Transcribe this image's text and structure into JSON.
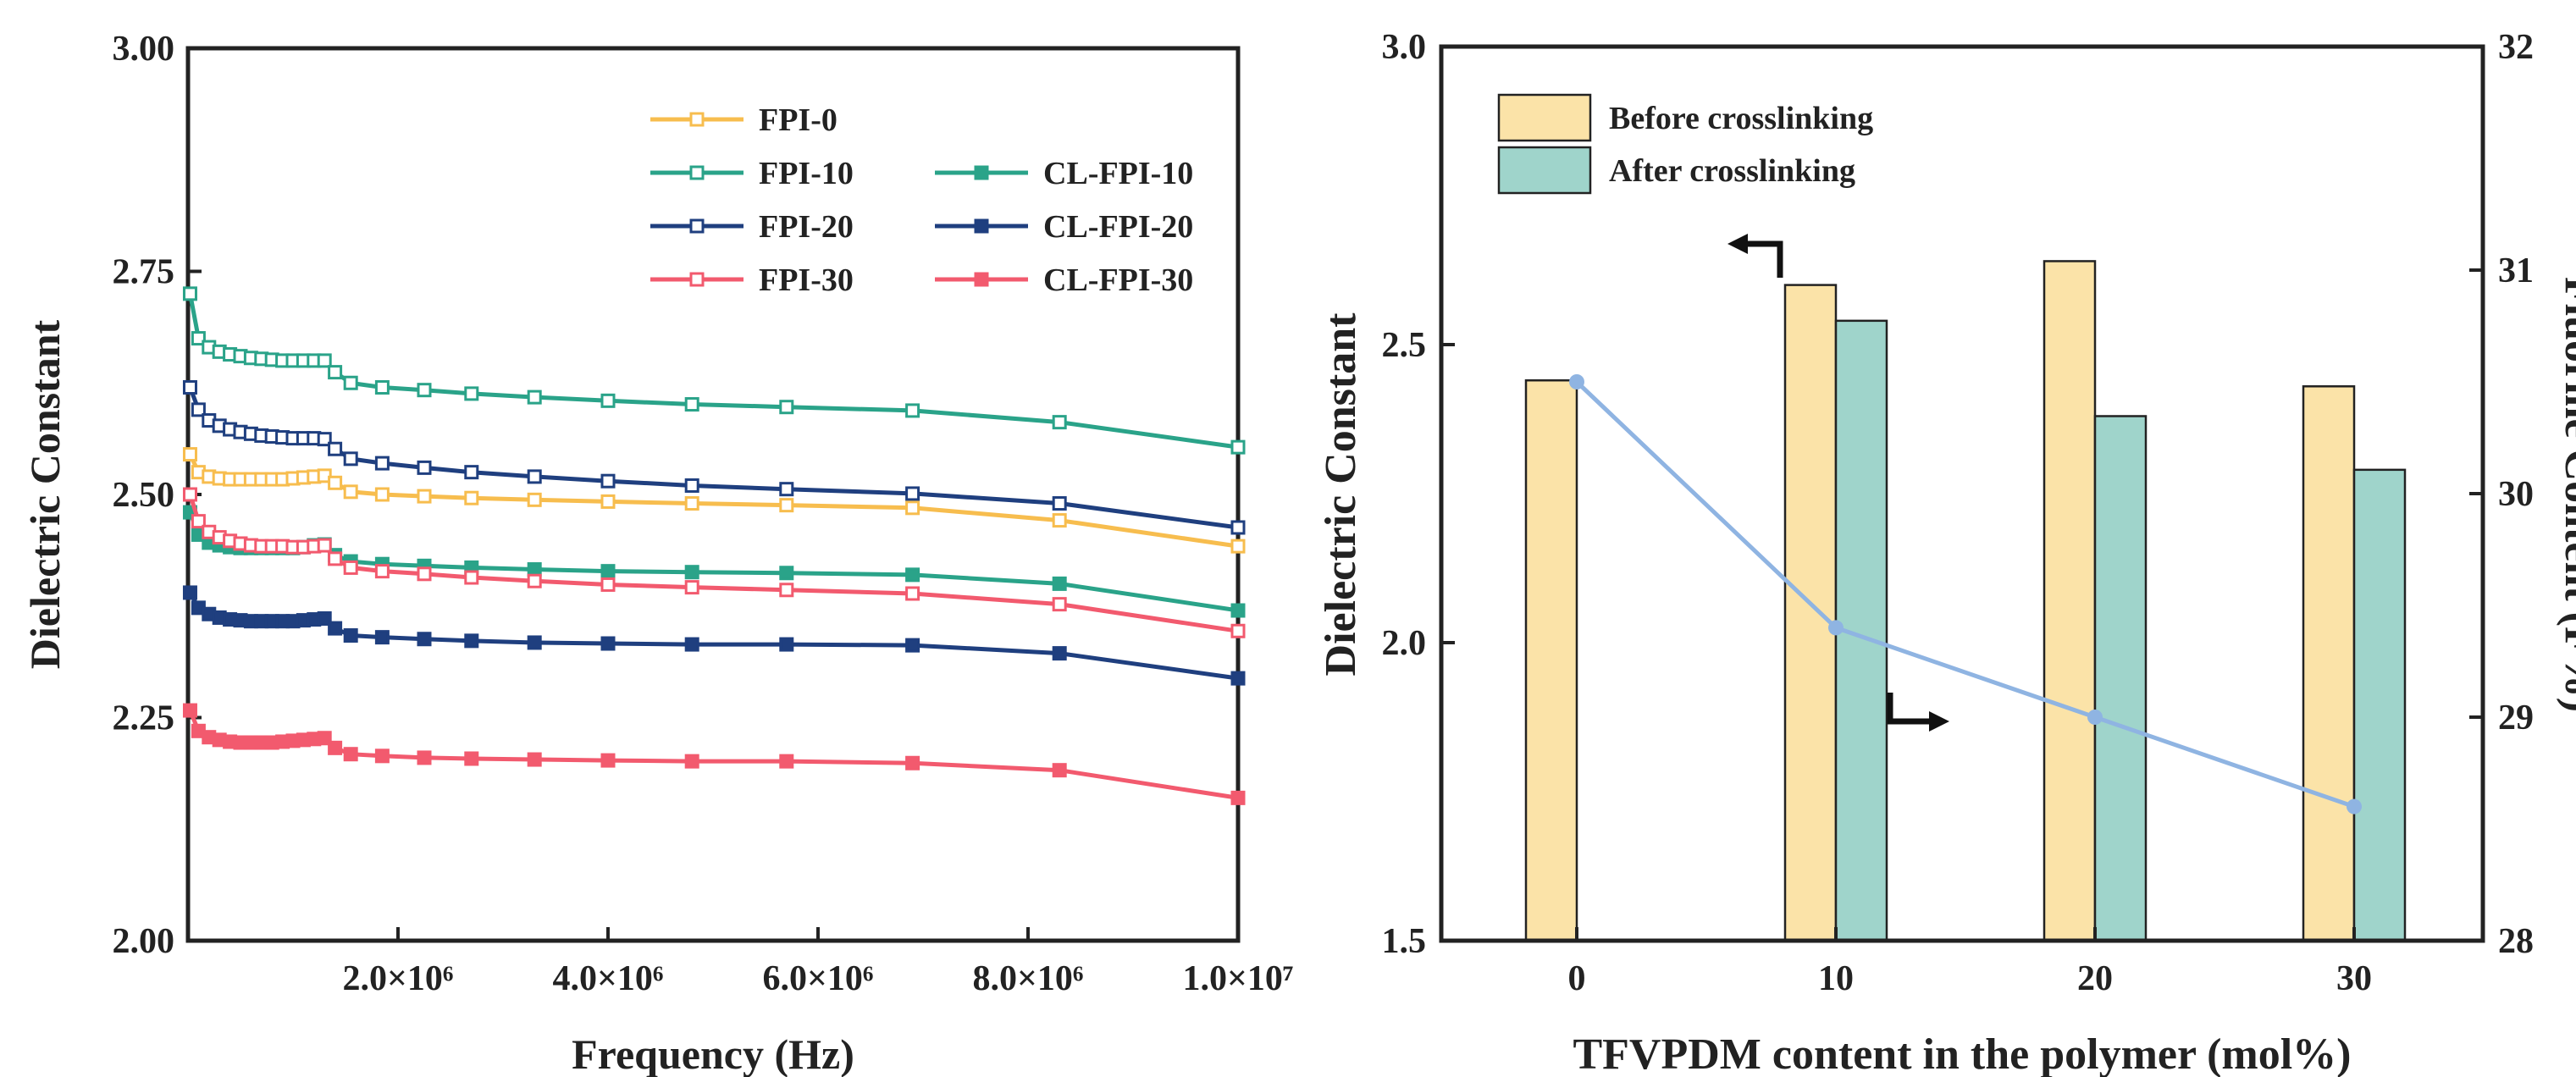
{
  "chart_data": [
    {
      "type": "line",
      "title": "",
      "xlabel": "Frequency (Hz)",
      "ylabel": "Dielectric Constant",
      "xlim": [
        0,
        10000000
      ],
      "ylim": [
        2.0,
        3.0
      ],
      "x_ticks": [
        2000000,
        4000000,
        6000000,
        8000000,
        10000000
      ],
      "x_tick_labels": [
        "2.0×10⁶",
        "4.0×10⁶",
        "6.0×10⁶",
        "8.0×10⁶",
        "1.0×10⁷"
      ],
      "y_ticks": [
        2.0,
        2.25,
        2.5,
        2.75,
        3.0
      ],
      "y_tick_labels": [
        "2.00",
        "2.25",
        "2.50",
        "2.75",
        "3.00"
      ],
      "legend_position": "top-right",
      "x": [
        20000,
        100000,
        200000,
        300000,
        400000,
        500000,
        600000,
        700000,
        800000,
        900000,
        1000000,
        1100000,
        1200000,
        1300000,
        1400000,
        1550000,
        1850000,
        2250000,
        2700000,
        3300000,
        4000000,
        4800000,
        5700000,
        6900000,
        8300000,
        10000000
      ],
      "series": [
        {
          "name": "FPI-0",
          "color": "#f7bd4e",
          "filled": false,
          "values": [
            2.545,
            2.525,
            2.52,
            2.518,
            2.517,
            2.517,
            2.517,
            2.517,
            2.517,
            2.517,
            2.518,
            2.519,
            2.52,
            2.521,
            2.513,
            2.503,
            2.5,
            2.498,
            2.496,
            2.494,
            2.492,
            2.49,
            2.488,
            2.485,
            2.471,
            2.442
          ]
        },
        {
          "name": "FPI-10",
          "color": "#2aa389",
          "filled": false,
          "values": [
            2.725,
            2.675,
            2.665,
            2.66,
            2.657,
            2.655,
            2.653,
            2.652,
            2.651,
            2.65,
            2.65,
            2.65,
            2.65,
            2.65,
            2.637,
            2.625,
            2.62,
            2.617,
            2.613,
            2.609,
            2.605,
            2.601,
            2.598,
            2.594,
            2.581,
            2.553
          ]
        },
        {
          "name": "CL-FPI-10",
          "color": "#2aa389",
          "filled": true,
          "values": [
            2.48,
            2.455,
            2.446,
            2.443,
            2.441,
            2.44,
            2.44,
            2.44,
            2.44,
            2.44,
            2.44,
            2.441,
            2.443,
            2.444,
            2.432,
            2.425,
            2.422,
            2.42,
            2.418,
            2.416,
            2.414,
            2.413,
            2.412,
            2.41,
            2.4,
            2.37
          ]
        },
        {
          "name": "FPI-20",
          "color": "#1f3f7f",
          "filled": false,
          "values": [
            2.62,
            2.595,
            2.583,
            2.577,
            2.573,
            2.57,
            2.568,
            2.566,
            2.565,
            2.564,
            2.563,
            2.563,
            2.563,
            2.562,
            2.551,
            2.54,
            2.535,
            2.53,
            2.525,
            2.52,
            2.515,
            2.51,
            2.506,
            2.501,
            2.49,
            2.463
          ]
        },
        {
          "name": "CL-FPI-20",
          "color": "#1f3f7f",
          "filled": true,
          "values": [
            2.39,
            2.373,
            2.366,
            2.362,
            2.36,
            2.359,
            2.358,
            2.358,
            2.358,
            2.358,
            2.358,
            2.359,
            2.36,
            2.361,
            2.35,
            2.342,
            2.34,
            2.338,
            2.336,
            2.334,
            2.333,
            2.332,
            2.332,
            2.331,
            2.322,
            2.294
          ]
        },
        {
          "name": "FPI-30",
          "color": "#f25a6e",
          "filled": false,
          "values": [
            2.5,
            2.47,
            2.458,
            2.452,
            2.448,
            2.445,
            2.443,
            2.442,
            2.442,
            2.442,
            2.441,
            2.441,
            2.442,
            2.443,
            2.428,
            2.418,
            2.414,
            2.411,
            2.407,
            2.403,
            2.399,
            2.396,
            2.393,
            2.389,
            2.377,
            2.347
          ]
        },
        {
          "name": "CL-FPI-30",
          "color": "#f25a6e",
          "filled": true,
          "values": [
            2.258,
            2.235,
            2.228,
            2.225,
            2.223,
            2.222,
            2.222,
            2.222,
            2.222,
            2.223,
            2.224,
            2.225,
            2.226,
            2.227,
            2.216,
            2.209,
            2.207,
            2.205,
            2.204,
            2.203,
            2.202,
            2.201,
            2.201,
            2.199,
            2.191,
            2.16
          ]
        }
      ]
    },
    {
      "type": "bar",
      "title": "",
      "xlabel": "TFVPDM content in the polymer (mol%)",
      "ylabel": "Dielectric Constant",
      "y2label": "Fluorine Content (F%)",
      "categories": [
        "0",
        "10",
        "20",
        "30"
      ],
      "ylim": [
        1.5,
        3.0
      ],
      "y2lim": [
        28,
        32
      ],
      "y_tick_labels": [
        "1.5",
        "2.0",
        "2.5",
        "3.0"
      ],
      "y2_tick_labels": [
        "28",
        "29",
        "30",
        "31",
        "32"
      ],
      "legend_position": "top-left",
      "series": [
        {
          "name": "Before crosslinking",
          "color": "#fbe3a8",
          "values": [
            2.44,
            2.6,
            2.64,
            2.43
          ]
        },
        {
          "name": "After crosslinking",
          "color": "#9fd4cb",
          "values": [
            null,
            2.54,
            2.38,
            2.29
          ]
        }
      ],
      "line_series": {
        "name": "Fluorine Content",
        "axis": "right",
        "color": "#8fb4e2",
        "values": [
          30.5,
          29.4,
          29.0,
          28.6
        ]
      }
    }
  ]
}
